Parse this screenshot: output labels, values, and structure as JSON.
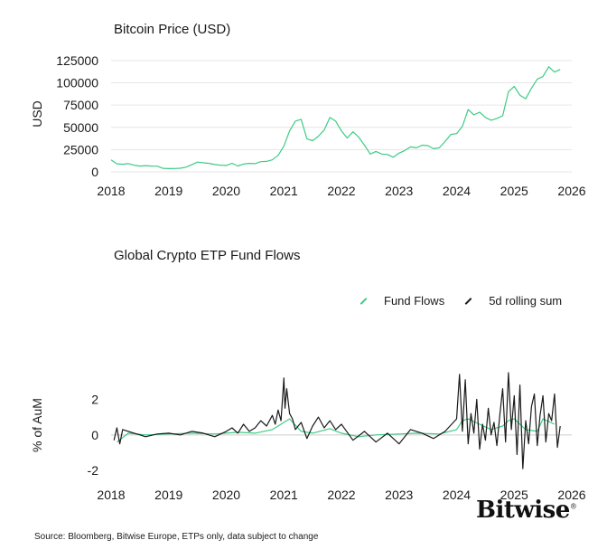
{
  "chart_data": [
    {
      "type": "line",
      "title": "Bitcoin Price (USD)",
      "ylabel": "USD",
      "xlabel": "",
      "xlim": [
        2018,
        2026
      ],
      "ylim": [
        0,
        130000
      ],
      "x_ticks": [
        "2018",
        "2019",
        "2020",
        "2021",
        "2022",
        "2023",
        "2024",
        "2025",
        "2026"
      ],
      "y_ticks": [
        "0",
        "25000",
        "50000",
        "75000",
        "100000",
        "125000"
      ],
      "grid": true,
      "series": [
        {
          "color": "#3ecb86",
          "x": [
            2018.0,
            2018.1,
            2018.2,
            2018.3,
            2018.4,
            2018.5,
            2018.6,
            2018.7,
            2018.8,
            2018.9,
            2019.0,
            2019.1,
            2019.2,
            2019.3,
            2019.4,
            2019.5,
            2019.6,
            2019.7,
            2019.8,
            2019.9,
            2020.0,
            2020.1,
            2020.2,
            2020.3,
            2020.4,
            2020.5,
            2020.6,
            2020.7,
            2020.8,
            2020.9,
            2021.0,
            2021.1,
            2021.2,
            2021.3,
            2021.4,
            2021.5,
            2021.6,
            2021.7,
            2021.8,
            2021.9,
            2022.0,
            2022.1,
            2022.2,
            2022.3,
            2022.4,
            2022.5,
            2022.6,
            2022.7,
            2022.8,
            2022.9,
            2023.0,
            2023.1,
            2023.2,
            2023.3,
            2023.4,
            2023.5,
            2023.6,
            2023.7,
            2023.8,
            2023.9,
            2024.0,
            2024.1,
            2024.2,
            2024.3,
            2024.4,
            2024.5,
            2024.6,
            2024.7,
            2024.8,
            2024.9,
            2025.0,
            2025.1,
            2025.2,
            2025.3,
            2025.4,
            2025.5,
            2025.6,
            2025.7,
            2025.8
          ],
          "values": [
            13500,
            9000,
            8500,
            9200,
            7500,
            6500,
            7000,
            6500,
            6400,
            4000,
            3700,
            3800,
            4100,
            5300,
            8000,
            11000,
            10200,
            9500,
            8200,
            7500,
            7200,
            9600,
            6600,
            8700,
            9500,
            9200,
            11500,
            11800,
            13500,
            18500,
            29000,
            46000,
            57000,
            59000,
            37000,
            35000,
            40000,
            47000,
            61000,
            57000,
            46000,
            38000,
            45000,
            39000,
            30000,
            20000,
            23000,
            20000,
            19500,
            16500,
            21000,
            24000,
            28000,
            27000,
            30000,
            29500,
            26000,
            27000,
            34000,
            42000,
            43000,
            51000,
            70000,
            64000,
            67000,
            61000,
            58000,
            60000,
            63000,
            90000,
            96000,
            86000,
            82000,
            94000,
            104000,
            107000,
            118000,
            112000,
            115000
          ]
        }
      ]
    },
    {
      "type": "line",
      "title": "Global Crypto ETP Fund Flows",
      "ylabel": "% of AuM",
      "xlabel": "",
      "xlim": [
        2018,
        2026
      ],
      "ylim": [
        -2.5,
        3.6
      ],
      "x_ticks": [
        "2018",
        "2019",
        "2020",
        "2021",
        "2022",
        "2023",
        "2024",
        "2025",
        "2026"
      ],
      "y_ticks": [
        "-2",
        "0",
        "2"
      ],
      "legend_position": "top-right",
      "series": [
        {
          "name": "Fund Flows",
          "color": "#3ecb86",
          "x": [
            2018.1,
            2018.3,
            2018.6,
            2019.0,
            2019.4,
            2019.8,
            2020.2,
            2020.5,
            2020.8,
            2020.9,
            2021.0,
            2021.1,
            2021.3,
            2021.5,
            2021.8,
            2022.0,
            2022.3,
            2022.6,
            2023.0,
            2023.3,
            2023.7,
            2024.0,
            2024.1,
            2024.2,
            2024.4,
            2024.6,
            2024.8,
            2024.9,
            2025.0,
            2025.2,
            2025.4,
            2025.5,
            2025.7
          ],
          "values": [
            -0.4,
            0.1,
            0.0,
            0.05,
            0.1,
            0.05,
            0.15,
            0.1,
            0.3,
            0.5,
            0.7,
            0.9,
            0.2,
            0.1,
            0.35,
            0.1,
            -0.1,
            0.0,
            0.05,
            0.1,
            0.05,
            0.3,
            0.8,
            0.9,
            0.6,
            0.3,
            0.5,
            0.8,
            0.9,
            0.3,
            0.2,
            0.9,
            0.6
          ]
        },
        {
          "name": "5d rolling sum",
          "color": "#1a1a1a",
          "x": [
            2018.05,
            2018.1,
            2018.15,
            2018.2,
            2018.3,
            2018.4,
            2018.5,
            2018.6,
            2018.8,
            2019.0,
            2019.2,
            2019.4,
            2019.6,
            2019.8,
            2020.0,
            2020.1,
            2020.2,
            2020.3,
            2020.4,
            2020.5,
            2020.6,
            2020.7,
            2020.8,
            2020.85,
            2020.9,
            2020.95,
            2021.0,
            2021.02,
            2021.05,
            2021.1,
            2021.15,
            2021.2,
            2021.3,
            2021.4,
            2021.5,
            2021.6,
            2021.7,
            2021.8,
            2021.9,
            2022.0,
            2022.2,
            2022.4,
            2022.6,
            2022.8,
            2023.0,
            2023.2,
            2023.4,
            2023.6,
            2023.8,
            2024.0,
            2024.05,
            2024.1,
            2024.15,
            2024.2,
            2024.25,
            2024.3,
            2024.35,
            2024.4,
            2024.45,
            2024.5,
            2024.55,
            2024.6,
            2024.65,
            2024.7,
            2024.75,
            2024.8,
            2024.85,
            2024.9,
            2024.95,
            2025.0,
            2025.05,
            2025.1,
            2025.15,
            2025.2,
            2025.25,
            2025.3,
            2025.35,
            2025.4,
            2025.45,
            2025.5,
            2025.55,
            2025.6,
            2025.65,
            2025.7,
            2025.75,
            2025.8
          ],
          "values": [
            -0.3,
            0.4,
            -0.5,
            0.3,
            0.2,
            0.1,
            0.0,
            -0.1,
            0.05,
            0.1,
            0.0,
            0.2,
            0.1,
            -0.1,
            0.2,
            0.4,
            0.1,
            0.6,
            0.2,
            0.4,
            0.8,
            0.5,
            1.1,
            0.6,
            1.4,
            0.8,
            3.2,
            1.5,
            2.6,
            1.2,
            0.9,
            0.3,
            0.7,
            -0.2,
            0.5,
            1.0,
            0.4,
            0.8,
            0.3,
            0.6,
            -0.3,
            0.2,
            -0.4,
            0.1,
            -0.5,
            0.3,
            0.1,
            -0.2,
            0.2,
            0.9,
            3.4,
            0.2,
            3.1,
            -0.5,
            1.2,
            0.1,
            2.0,
            -0.8,
            0.6,
            -0.3,
            1.5,
            0.0,
            0.7,
            -0.6,
            1.1,
            2.6,
            -0.4,
            3.5,
            0.3,
            2.2,
            -1.1,
            2.8,
            -1.9,
            0.8,
            -0.5,
            1.6,
            2.3,
            -0.6,
            1.1,
            2.2,
            -0.4,
            1.2,
            0.8,
            2.3,
            -0.7,
            0.5
          ]
        }
      ]
    }
  ],
  "footer": {
    "source": "Source: Bloomberg, Bitwise Europe, ETPs only, data subject to change",
    "brand": "Bitwise",
    "brand_mark": "®"
  }
}
